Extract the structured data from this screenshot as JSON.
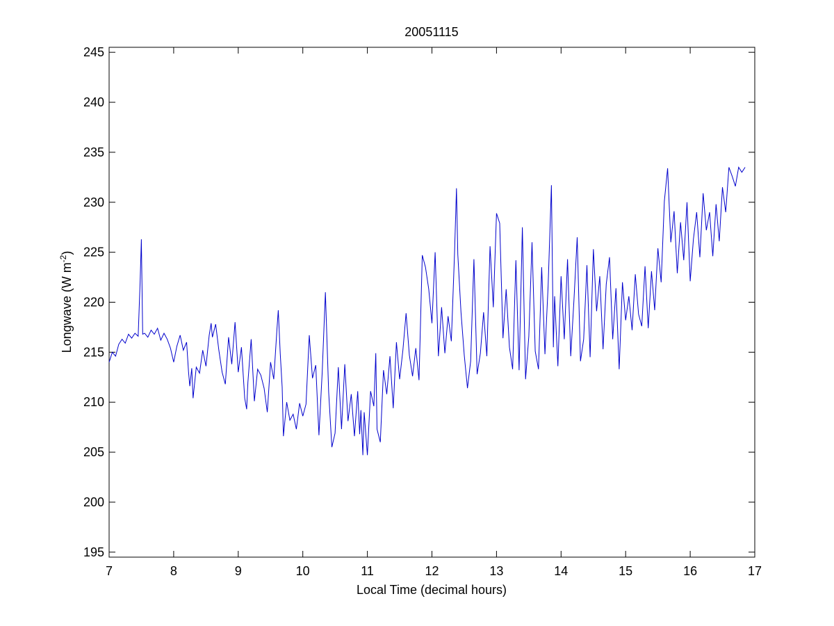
{
  "chart_data": {
    "type": "line",
    "title": "20051115",
    "xlabel": "Local Time (decimal hours)",
    "ylabel_main": "Longwave (W m",
    "ylabel_sup": "-2",
    "ylabel_tail": ")",
    "xlim": [
      7,
      17
    ],
    "ylim": [
      194.5,
      245.5
    ],
    "xticks": [
      7,
      8,
      9,
      10,
      11,
      12,
      13,
      14,
      15,
      16,
      17
    ],
    "yticks": [
      195,
      200,
      205,
      210,
      215,
      220,
      225,
      230,
      235,
      240,
      245
    ],
    "grid": false,
    "line_color": "#0000cc",
    "series": [
      {
        "x": [
          7.0,
          7.05,
          7.1,
          7.15,
          7.2,
          7.25,
          7.3,
          7.35,
          7.4,
          7.45,
          7.48,
          7.5,
          7.52,
          7.55,
          7.6,
          7.65,
          7.7,
          7.75,
          7.8,
          7.85,
          7.9,
          7.95,
          8.0,
          8.05,
          8.1,
          8.15,
          8.2,
          8.23,
          8.25,
          8.28,
          8.3,
          8.35,
          8.4,
          8.45,
          8.5,
          8.55,
          8.58,
          8.6,
          8.65,
          8.7,
          8.75,
          8.8,
          8.85,
          8.9,
          8.95,
          9.0,
          9.05,
          9.1,
          9.13,
          9.15,
          9.2,
          9.25,
          9.3,
          9.35,
          9.4,
          9.45,
          9.5,
          9.55,
          9.6,
          9.62,
          9.65,
          9.68,
          9.7,
          9.75,
          9.8,
          9.85,
          9.9,
          9.95,
          10.0,
          10.05,
          10.1,
          10.15,
          10.2,
          10.25,
          10.3,
          10.35,
          10.4,
          10.45,
          10.5,
          10.55,
          10.6,
          10.65,
          10.7,
          10.75,
          10.8,
          10.85,
          10.88,
          10.9,
          10.93,
          10.95,
          11.0,
          11.05,
          11.1,
          11.13,
          11.15,
          11.2,
          11.25,
          11.3,
          11.35,
          11.4,
          11.45,
          11.5,
          11.55,
          11.6,
          11.65,
          11.7,
          11.75,
          11.8,
          11.85,
          11.9,
          11.95,
          12.0,
          12.05,
          12.1,
          12.15,
          12.2,
          12.25,
          12.3,
          12.35,
          12.38,
          12.4,
          12.45,
          12.5,
          12.55,
          12.6,
          12.65,
          12.7,
          12.75,
          12.8,
          12.85,
          12.9,
          12.95,
          13.0,
          13.05,
          13.1,
          13.15,
          13.2,
          13.25,
          13.3,
          13.35,
          13.4,
          13.45,
          13.5,
          13.55,
          13.6,
          13.65,
          13.7,
          13.75,
          13.8,
          13.85,
          13.88,
          13.9,
          13.95,
          14.0,
          14.05,
          14.1,
          14.15,
          14.2,
          14.25,
          14.3,
          14.35,
          14.4,
          14.45,
          14.5,
          14.55,
          14.6,
          14.65,
          14.7,
          14.75,
          14.8,
          14.85,
          14.9,
          14.95,
          15.0,
          15.05,
          15.1,
          15.15,
          15.2,
          15.25,
          15.3,
          15.35,
          15.4,
          15.45,
          15.5,
          15.55,
          15.6,
          15.65,
          15.7,
          15.75,
          15.8,
          15.85,
          15.9,
          15.95,
          16.0,
          16.05,
          16.1,
          16.15,
          16.2,
          16.25,
          16.3,
          16.35,
          16.4,
          16.45,
          16.5,
          16.55,
          16.6,
          16.65,
          16.7,
          16.75,
          16.8,
          16.85
        ],
        "y": [
          214.0,
          215.0,
          214.6,
          215.8,
          216.3,
          215.9,
          216.8,
          216.4,
          216.9,
          216.6,
          222.0,
          226.3,
          216.8,
          216.9,
          216.5,
          217.2,
          216.8,
          217.4,
          216.2,
          216.9,
          216.3,
          215.4,
          214.0,
          215.6,
          216.7,
          215.2,
          216.0,
          213.0,
          211.6,
          213.4,
          210.4,
          213.5,
          212.9,
          215.2,
          213.6,
          216.7,
          217.9,
          216.5,
          217.8,
          215.2,
          213.0,
          211.8,
          216.5,
          213.8,
          218.0,
          213.0,
          215.5,
          210.4,
          209.3,
          212.0,
          216.3,
          210.1,
          213.3,
          212.7,
          211.4,
          209.0,
          214.0,
          212.3,
          217.3,
          219.2,
          214.9,
          211.5,
          206.6,
          210.0,
          208.2,
          208.8,
          207.3,
          209.9,
          208.6,
          209.8,
          216.7,
          212.4,
          213.7,
          206.7,
          213.0,
          221.0,
          211.0,
          205.5,
          206.9,
          213.5,
          207.3,
          213.8,
          208.1,
          210.8,
          206.6,
          211.1,
          206.8,
          209.2,
          204.7,
          209.0,
          204.7,
          211.1,
          209.6,
          214.9,
          207.3,
          206.0,
          213.2,
          210.8,
          214.6,
          209.4,
          216.0,
          212.3,
          215.2,
          218.9,
          214.7,
          212.6,
          215.4,
          212.2,
          224.7,
          223.5,
          221.3,
          217.9,
          225.0,
          214.6,
          219.5,
          214.9,
          218.6,
          216.1,
          224.9,
          231.4,
          224.8,
          219.0,
          214.7,
          211.4,
          214.1,
          224.3,
          212.8,
          214.9,
          219.0,
          214.6,
          225.6,
          219.5,
          228.9,
          227.9,
          216.4,
          221.3,
          215.5,
          213.3,
          224.2,
          213.2,
          227.5,
          212.3,
          216.6,
          226.0,
          215.1,
          213.3,
          223.5,
          214.8,
          221.7,
          231.7,
          215.5,
          220.6,
          213.6,
          222.6,
          216.3,
          224.3,
          214.6,
          220.3,
          226.5,
          214.1,
          216.3,
          223.7,
          214.5,
          225.3,
          219.1,
          222.6,
          215.3,
          221.8,
          224.5,
          216.3,
          221.4,
          213.3,
          222.0,
          218.2,
          220.6,
          217.2,
          222.8,
          218.8,
          217.6,
          223.6,
          217.4,
          223.1,
          219.2,
          225.4,
          222.0,
          230.1,
          233.4,
          226.0,
          229.1,
          222.9,
          228.0,
          224.2,
          230.0,
          222.1,
          226.3,
          229.0,
          224.5,
          230.9,
          227.2,
          229.0,
          224.6,
          229.8,
          226.1,
          231.5,
          229.0,
          233.5,
          232.6,
          231.6,
          233.5,
          233.0,
          233.5
        ]
      }
    ]
  }
}
